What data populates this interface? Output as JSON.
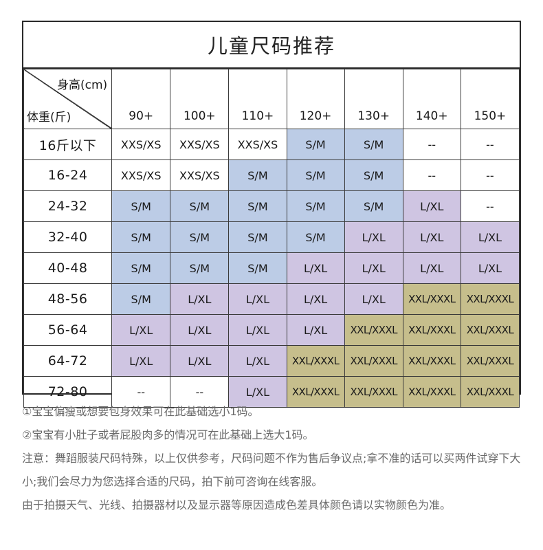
{
  "title": "儿童尺码推荐",
  "corner": {
    "height_label": "身高(cm)",
    "weight_label": "体重(斤)"
  },
  "heights": [
    "90+",
    "100+",
    "110+",
    "120+",
    "130+",
    "140+",
    "150+"
  ],
  "rows": [
    {
      "weight": "16斤以下",
      "cells": [
        "XXS/XS",
        "XXS/XS",
        "XXS/XS",
        "S/M",
        "S/M",
        "--",
        "--"
      ]
    },
    {
      "weight": "16-24",
      "cells": [
        "XXS/XS",
        "XXS/XS",
        "S/M",
        "S/M",
        "S/M",
        "--",
        "--"
      ]
    },
    {
      "weight": "24-32",
      "cells": [
        "S/M",
        "S/M",
        "S/M",
        "S/M",
        "S/M",
        "L/XL",
        "--"
      ]
    },
    {
      "weight": "32-40",
      "cells": [
        "S/M",
        "S/M",
        "S/M",
        "S/M",
        "L/XL",
        "L/XL",
        "L/XL"
      ]
    },
    {
      "weight": "40-48",
      "cells": [
        "S/M",
        "S/M",
        "S/M",
        "L/XL",
        "L/XL",
        "L/XL",
        "L/XL"
      ]
    },
    {
      "weight": "48-56",
      "cells": [
        "S/M",
        "L/XL",
        "L/XL",
        "L/XL",
        "L/XL",
        "XXL/XXXL",
        "XXL/XXXL"
      ]
    },
    {
      "weight": "56-64",
      "cells": [
        "L/XL",
        "L/XL",
        "L/XL",
        "L/XL",
        "XXL/XXXL",
        "XXL/XXXL",
        "XXL/XXXL"
      ]
    },
    {
      "weight": "64-72",
      "cells": [
        "L/XL",
        "L/XL",
        "L/XL",
        "XXL/XXXL",
        "XXL/XXXL",
        "XXL/XXXL",
        "XXL/XXXL"
      ]
    },
    {
      "weight": "72-80",
      "cells": [
        "--",
        "--",
        "L/XL",
        "XXL/XXXL",
        "XXL/XXXL",
        "XXL/XXXL",
        "XXL/XXXL"
      ]
    }
  ],
  "size_colors": {
    "XXS/XS": "#ffffff",
    "S/M": "#bccce6",
    "L/XL": "#cfc5e2",
    "XXL/XXXL": "#c6be8c",
    "--": "#ffffff"
  },
  "notes": [
    "①宝宝偏瘦或想要包身效果可在此基础选小1码。",
    "②宝宝有小肚子或者屁股肉多的情况可在此基础上选大1码。",
    "注意：舞蹈服装尺码特殊，以上仅供参考，尺码问题不作为售后争议点;拿不准的话可以买两件试穿下大小;我们会尽力为您选择合适的尺码，拍下前可咨询在线客服。",
    "由于拍摄天气、光线、拍摄器材以及显示器等原因造成色差具体颜色请以实物颜色为准。"
  ]
}
